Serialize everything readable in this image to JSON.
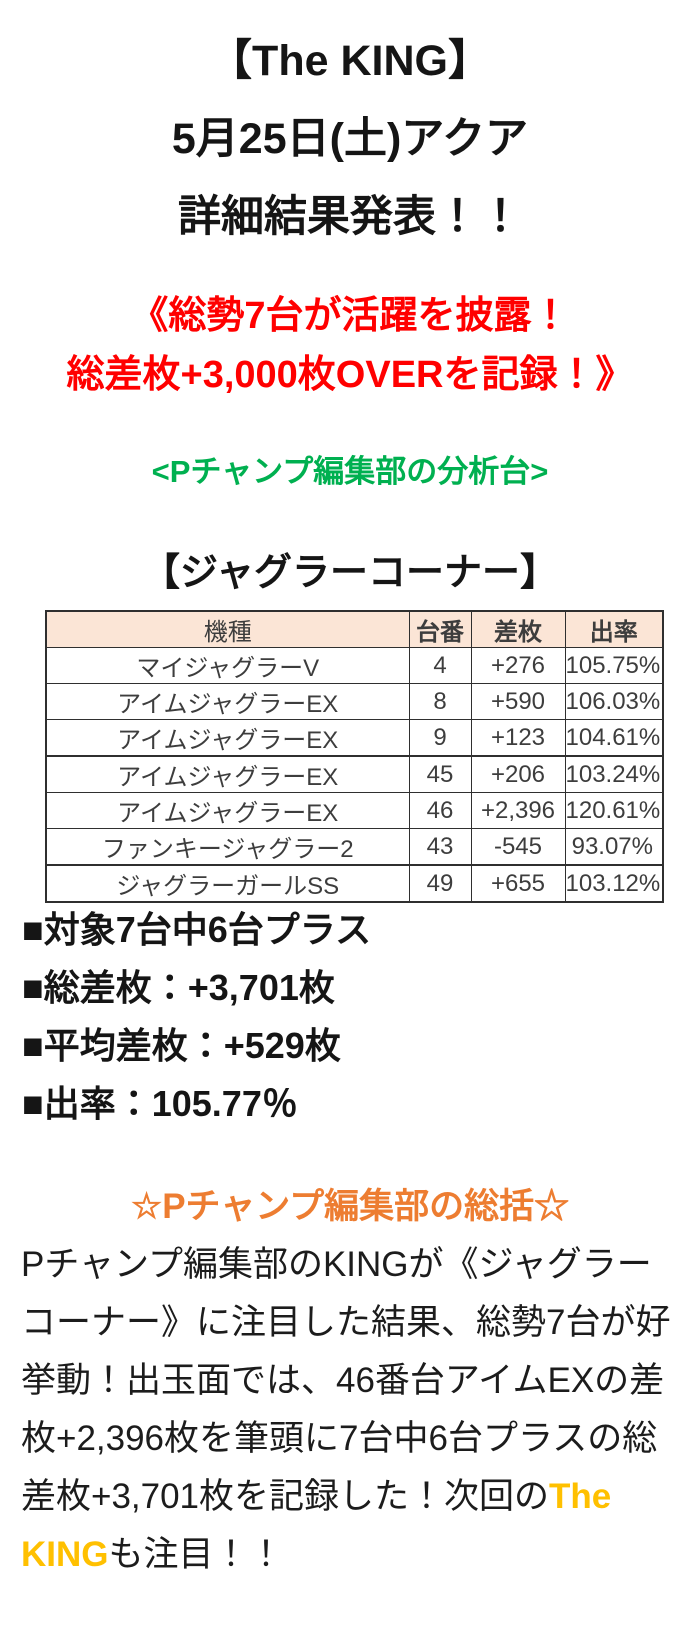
{
  "colors": {
    "red": "#ff0000",
    "green": "#00b050",
    "orange": "#ed7d31",
    "gold": "#ffc000",
    "table_header_bg": "#fbe5d6",
    "table_border": "#2f2f2f",
    "table_text": "#3d3d3d",
    "ink": "#151515"
  },
  "title": {
    "line1": "【The KING】",
    "line2": "5月25日(土)アクア",
    "line3": "詳細結果発表！！"
  },
  "highlight": {
    "line1": "《総勢7台が活躍を披露！",
    "line2": "総差枚+3,000枚OVERを記録！》"
  },
  "analysis_tag": "<Pチャンプ編集部の分析台>",
  "corner_heading": "【ジャグラーコーナー】",
  "table": {
    "headers": [
      "機種",
      "台番",
      "差枚",
      "出率"
    ],
    "rows": [
      [
        "マイジャグラーV",
        "4",
        "+276",
        "105.75%"
      ],
      [
        "アイムジャグラーEX",
        "8",
        "+590",
        "106.03%"
      ],
      [
        "アイムジャグラーEX",
        "9",
        "+123",
        "104.61%"
      ],
      [
        "アイムジャグラーEX",
        "45",
        "+206",
        "103.24%"
      ],
      [
        "アイムジャグラーEX",
        "46",
        "+2,396",
        "120.61%"
      ],
      [
        "ファンキージャグラー2",
        "43",
        "-545",
        "93.07%"
      ],
      [
        "ジャグラーガールSS",
        "49",
        "+655",
        "103.12%"
      ]
    ],
    "thick_separator_after_rows": [
      3,
      6
    ]
  },
  "summary_bullets": [
    "■対象7台中6台プラス",
    "■総差枚：+3,701枚",
    "■平均差枚：+529枚",
    "■出率：105.77％"
  ],
  "recap": {
    "heading": "☆Pチャンプ編集部の総括☆",
    "body_before": "Pチャンプ編集部のKINGが《ジャグラーコーナー》に注目した結果、総勢7台が好挙動！出玉面では、46番台アイムEXの差枚+2,396枚を筆頭に7台中6台プラスの総差枚+3,701枚を記録した！次回の",
    "body_highlight": "The KING",
    "body_after": "も注目！！"
  }
}
